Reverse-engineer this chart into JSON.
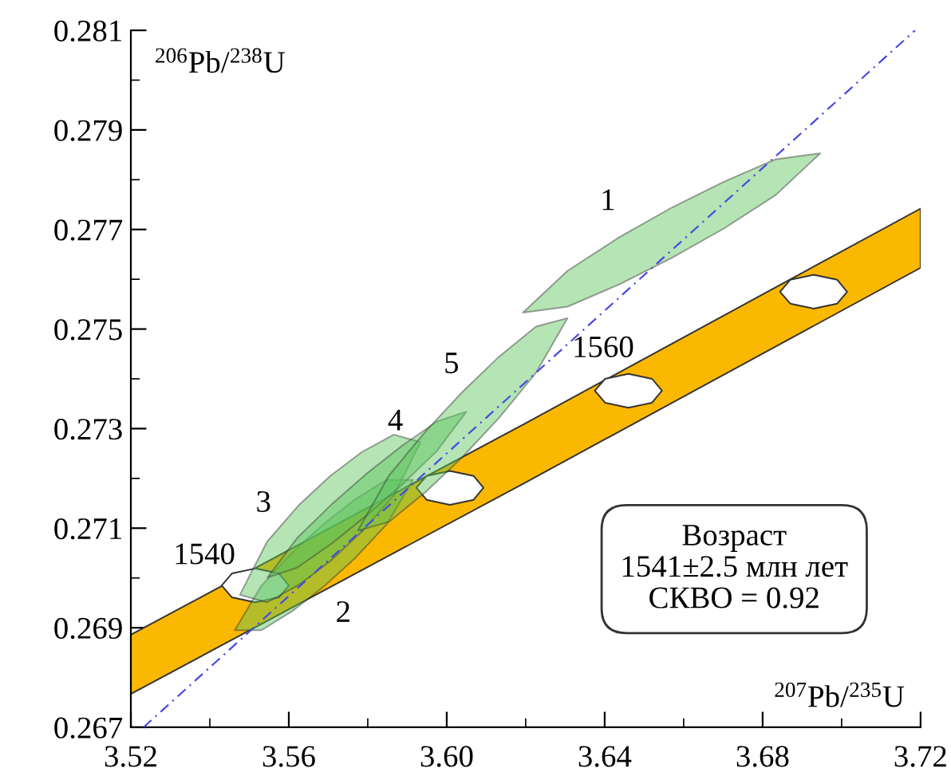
{
  "chart_data": {
    "type": "line",
    "xlabel": "$^{207}$Pb/$^{235}$U",
    "ylabel": "$^{206}$Pb/$^{238}$U",
    "xlim": [
      3.52,
      3.72
    ],
    "ylim": [
      0.267,
      0.281
    ],
    "xticks": [
      {
        "value": 3.52,
        "label": "3.52"
      },
      {
        "value": 3.54,
        "label": null
      },
      {
        "value": 3.56,
        "label": "3.56"
      },
      {
        "value": 3.58,
        "label": null
      },
      {
        "value": 3.6,
        "label": "3.60"
      },
      {
        "value": 3.62,
        "label": null
      },
      {
        "value": 3.64,
        "label": "3.64"
      },
      {
        "value": 3.66,
        "label": null
      },
      {
        "value": 3.68,
        "label": "3.68"
      },
      {
        "value": 3.7,
        "label": null
      },
      {
        "value": 3.72,
        "label": "3.72"
      }
    ],
    "yticks": [
      0.267,
      {
        "value": 0.268,
        "label": null
      },
      0.269,
      {
        "value": 0.27,
        "label": null
      },
      0.271,
      {
        "value": 0.272,
        "label": null
      },
      0.273,
      {
        "value": 0.274,
        "label": null
      },
      0.275,
      {
        "value": 0.276,
        "label": null
      },
      0.277,
      {
        "value": 0.278,
        "label": null
      },
      0.279,
      {
        "value": 0.28,
        "label": null
      },
      0.281
    ],
    "series": [
      {
        "color": "#fbb800",
        "x": [
          3.52,
          3.62,
          3.72
        ],
        "values": [
          null,
          null,
          null
        ],
        "lower": [
          0.26767,
          0.27192,
          0.27623
        ],
        "upper": [
          0.26886,
          0.27311,
          0.27742
        ]
      },
      {
        "color": "#ffffff",
        "x": [
          3.543,
          3.5456,
          3.5515,
          3.5575,
          3.56
        ],
        "values": [
          null,
          null,
          null,
          null,
          null
        ],
        "lower": [
          0.26985,
          0.26961,
          0.26951,
          0.26961,
          0.26985
        ],
        "upper": [
          0.26985,
          0.27009,
          0.27019,
          0.27009,
          0.26985
        ]
      },
      {
        "color": "#ffffff",
        "x": [
          3.5923,
          3.5949,
          3.6008,
          3.6068,
          3.6093
        ],
        "values": [
          null,
          null,
          null,
          null,
          null
        ],
        "lower": [
          0.27181,
          0.27157,
          0.27147,
          0.27157,
          0.27181
        ],
        "upper": [
          0.27181,
          0.27205,
          0.27215,
          0.27205,
          0.27181
        ]
      },
      {
        "color": "#ffffff",
        "x": [
          3.6375,
          3.6401,
          3.646,
          3.652,
          3.6545
        ],
        "values": [
          null,
          null,
          null,
          null,
          null
        ],
        "lower": [
          0.27376,
          0.27352,
          0.27342,
          0.27352,
          0.27376
        ],
        "upper": [
          0.27376,
          0.274,
          0.2741,
          0.274,
          0.27376
        ]
      },
      {
        "color": "#ffffff",
        "x": [
          3.6844,
          3.687,
          3.6929,
          3.6989,
          3.7014
        ],
        "values": [
          null,
          null,
          null,
          null,
          null
        ],
        "lower": [
          0.27575,
          0.27551,
          0.27541,
          0.27551,
          0.27575
        ],
        "upper": [
          0.27575,
          0.27599,
          0.27609,
          0.27599,
          0.27575
        ]
      },
      {
        "color": "#5cc45c",
        "x": [
          3.6193,
          3.6306,
          3.6438,
          3.657,
          3.6702,
          3.6833,
          3.6946
        ],
        "values": [
          null,
          null,
          null,
          null,
          null,
          null,
          null
        ],
        "lower": [
          0.27533,
          0.27545,
          0.2759,
          0.27643,
          0.27702,
          0.27769,
          0.27853
        ],
        "upper": [
          0.27533,
          0.27617,
          0.27685,
          0.27744,
          0.27796,
          0.27841,
          0.27853
        ]
      },
      {
        "color": "#5cc45c",
        "x": [
          3.5463,
          3.5531,
          3.561,
          3.5689,
          3.5768,
          3.5847,
          3.5915
        ],
        "values": [
          null,
          null,
          null,
          null,
          null,
          null,
          null
        ],
        "lower": [
          0.26895,
          0.26895,
          0.26934,
          0.26983,
          0.2704,
          0.27107,
          0.27197
        ],
        "upper": [
          0.26895,
          0.26985,
          0.27052,
          0.27109,
          0.27158,
          0.27197,
          0.27197
        ]
      },
      {
        "color": "#5cc45c",
        "x": [
          3.5476,
          3.5545,
          3.5625,
          3.5705,
          3.5785,
          3.5866,
          3.5934
        ],
        "values": [
          null,
          null,
          null,
          null,
          null,
          null,
          null
        ],
        "lower": [
          0.26966,
          0.26951,
          0.26986,
          0.27034,
          0.27093,
          0.27166,
          0.27273
        ],
        "upper": [
          0.26966,
          0.27073,
          0.27146,
          0.27205,
          0.27253,
          0.27288,
          0.27273
        ]
      },
      {
        "color": "#5cc45c",
        "x": [
          3.5546,
          3.5622,
          3.571,
          3.5798,
          3.5886,
          3.5974,
          3.605
        ],
        "values": [
          null,
          null,
          null,
          null,
          null,
          null,
          null
        ],
        "lower": [
          0.27001,
          0.27021,
          0.2707,
          0.27126,
          0.27187,
          0.27254,
          0.27334
        ],
        "upper": [
          0.27001,
          0.27081,
          0.27149,
          0.2721,
          0.27265,
          0.27314,
          0.27334
        ]
      },
      {
        "color": "#5cc45c",
        "x": [
          3.5775,
          3.5854,
          3.5947,
          3.604,
          3.6133,
          3.6226,
          3.6306
        ],
        "values": [
          null,
          null,
          null,
          null,
          null,
          null,
          null
        ],
        "lower": [
          0.27095,
          0.27113,
          0.27173,
          0.27243,
          0.27322,
          0.27412,
          0.27522
        ],
        "upper": [
          0.27095,
          0.27206,
          0.27295,
          0.27374,
          0.27445,
          0.27505,
          0.27522
        ]
      },
      {
        "color": "#4a4ae0",
        "line_style": "dashed",
        "x": [
          3.5232,
          3.7186
        ],
        "values": [
          0.267,
          0.281
        ]
      }
    ],
    "annotations": [
      "1",
      "2",
      "3",
      "4",
      "5",
      "1540",
      "1560",
      "Возраст\n1541±2.5 млн лет\nСКВО = 0.92"
    ]
  }
}
